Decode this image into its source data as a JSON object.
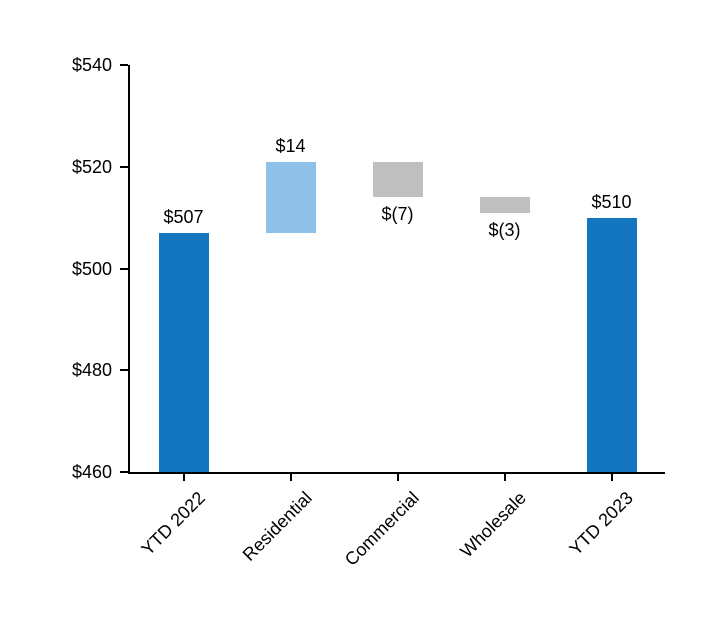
{
  "chart_data": {
    "type": "bar",
    "subtype": "waterfall",
    "title": "",
    "categories": [
      "YTD 2022",
      "Residential",
      "Commercial",
      "Wholesale",
      "YTD 2023"
    ],
    "ylim": [
      460,
      540
    ],
    "yticks": [
      460,
      480,
      500,
      520,
      540
    ],
    "ytick_labels": [
      "$460",
      "$480",
      "$500",
      "$520",
      "$540"
    ],
    "grid": false,
    "legend": false,
    "axis_color": "#000000",
    "colors": {
      "total_bar": "#1476BE",
      "increase_bar": "#8FC1E8",
      "decrease_bar": "#BFBFBF"
    },
    "bars": [
      {
        "category": "YTD 2022",
        "start": 460,
        "end": 507,
        "value": 507,
        "label": "$507",
        "label_position": "above",
        "color": "#1476BE",
        "role": "total"
      },
      {
        "category": "Residential",
        "start": 507,
        "end": 521,
        "value": 14,
        "label": "$14",
        "label_position": "above",
        "color": "#8FC1E8",
        "role": "increase"
      },
      {
        "category": "Commercial",
        "start": 521,
        "end": 514,
        "value": -7,
        "label": "$(7)",
        "label_position": "below",
        "color": "#BFBFBF",
        "role": "decrease"
      },
      {
        "category": "Wholesale",
        "start": 514,
        "end": 511,
        "value": -3,
        "label": "$(3)",
        "label_position": "below",
        "color": "#BFBFBF",
        "role": "decrease"
      },
      {
        "category": "YTD 2023",
        "start": 460,
        "end": 510,
        "value": 510,
        "label": "$510",
        "label_position": "above",
        "color": "#1476BE",
        "role": "total"
      }
    ]
  }
}
